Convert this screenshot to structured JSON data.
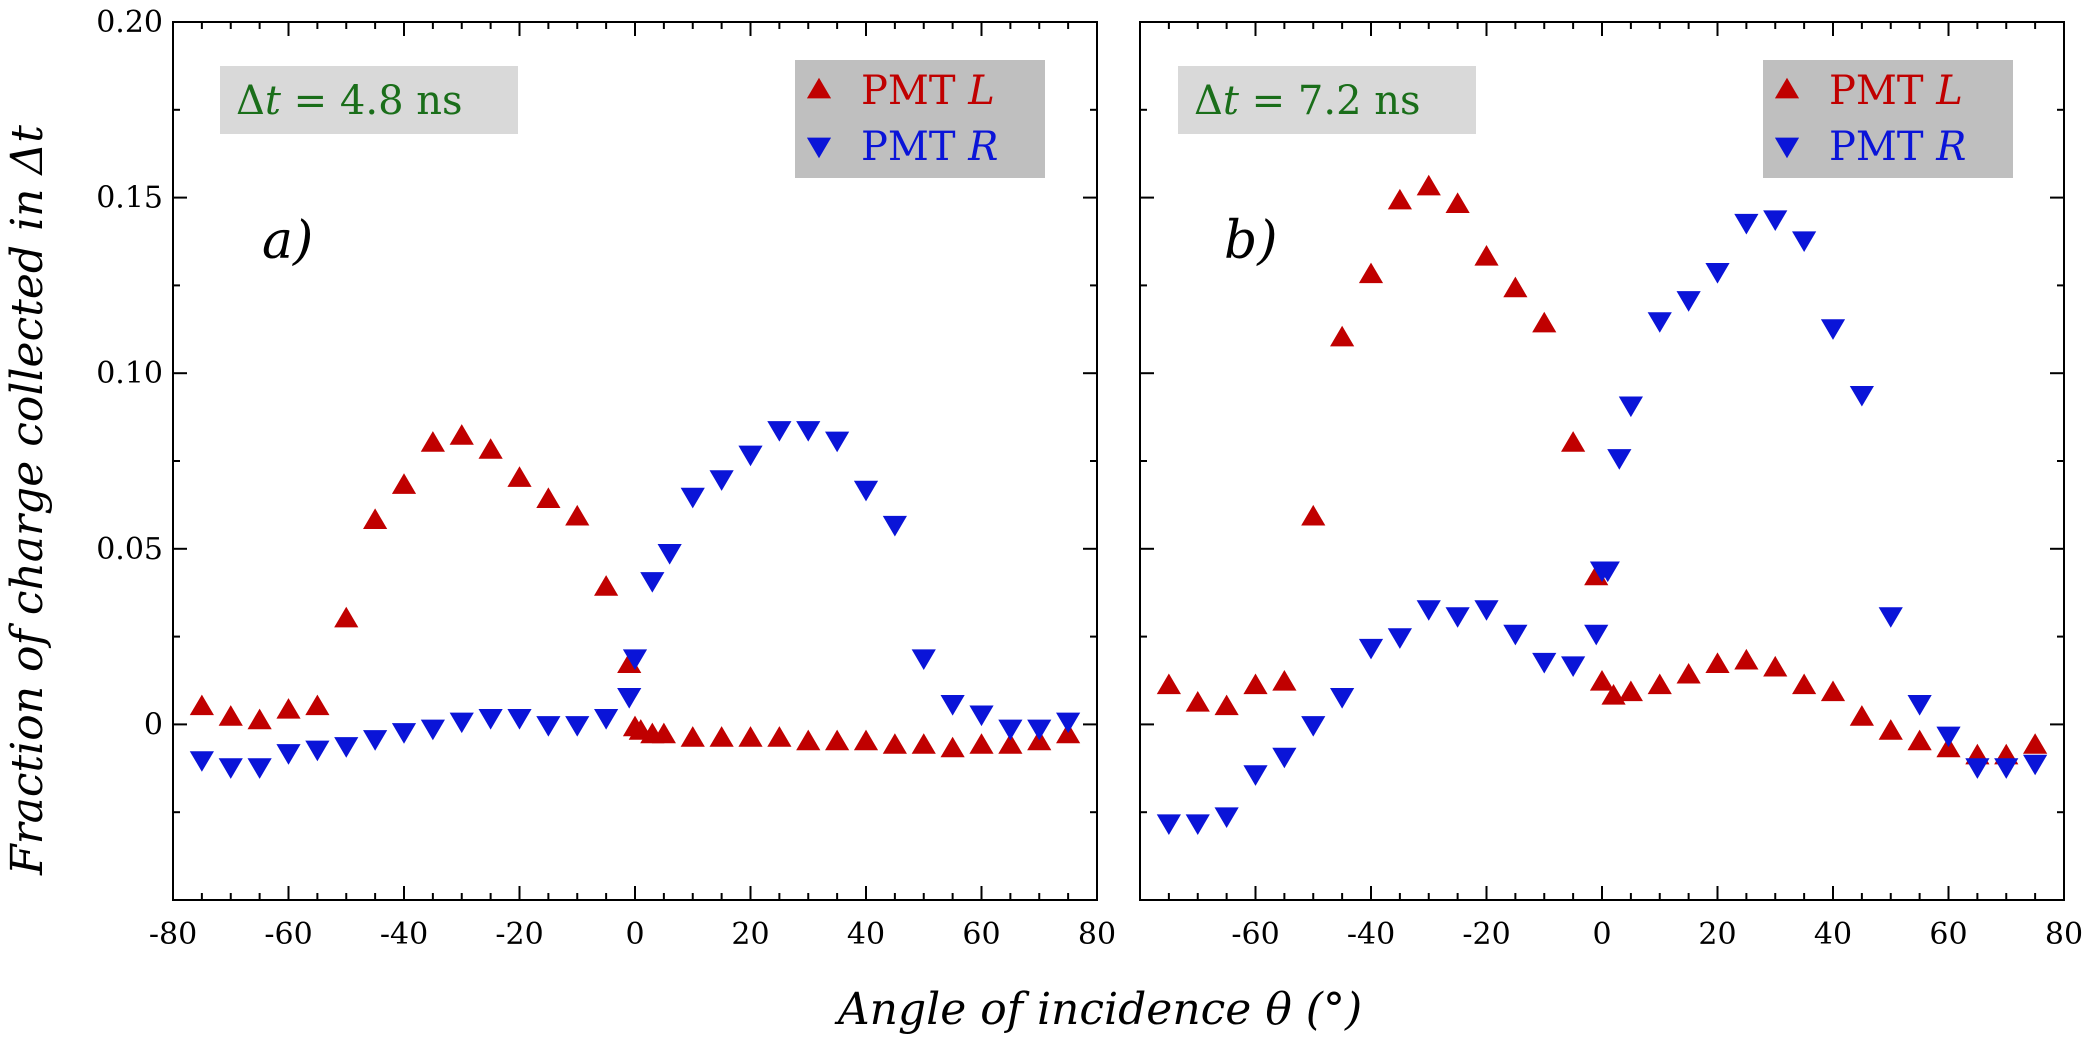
{
  "chart_data": {
    "type": "scatter",
    "ylabel_parts": [
      "Fraction of charge collected in Δ",
      "t"
    ],
    "xlabel": "Angle of incidence θ (°)",
    "colors": {
      "pmt_l": "#c00000",
      "pmt_r": "#0a14d8",
      "annotation": "#1a6e1a"
    },
    "panels": [
      {
        "label": "a)",
        "annotation": {
          "delta": "Δ",
          "t": "t",
          "rest": " = 4.8 ns"
        },
        "xlim": [
          -80,
          80
        ],
        "ylim": [
          -0.05,
          0.2
        ],
        "xticks": [
          "-80",
          "-60",
          "-40",
          "-20",
          "0",
          "20",
          "40",
          "60",
          "80"
        ],
        "xtick_values": [
          -80,
          -60,
          -40,
          -20,
          0,
          20,
          40,
          60,
          80
        ],
        "yticks": [
          "0",
          "0.05",
          "0.10",
          "0.15",
          "0.20"
        ],
        "ytick_values": [
          0,
          0.05,
          0.1,
          0.15,
          0.2
        ],
        "legend": [
          {
            "name": "PMT ",
            "italic": "L",
            "marker": "up"
          },
          {
            "name": "PMT ",
            "italic": "R",
            "marker": "down"
          }
        ],
        "series": [
          {
            "name": "PMT L",
            "marker": "up",
            "x": [
              -75,
              -70,
              -65,
              -60,
              -55,
              -50,
              -45,
              -40,
              -35,
              -30,
              -25,
              -20,
              -15,
              -10,
              -5,
              -1,
              0,
              1,
              3,
              5,
              10,
              15,
              20,
              25,
              30,
              35,
              40,
              45,
              50,
              55,
              60,
              65,
              70,
              75
            ],
            "y": [
              0.005,
              0.002,
              0.001,
              0.004,
              0.005,
              0.03,
              0.058,
              0.068,
              0.08,
              0.082,
              0.078,
              0.07,
              0.064,
              0.059,
              0.039,
              0.017,
              -0.001,
              -0.002,
              -0.003,
              -0.003,
              -0.004,
              -0.004,
              -0.004,
              -0.004,
              -0.005,
              -0.005,
              -0.005,
              -0.006,
              -0.006,
              -0.007,
              -0.006,
              -0.006,
              -0.005,
              -0.003
            ]
          },
          {
            "name": "PMT R",
            "marker": "down",
            "x": [
              -75,
              -70,
              -65,
              -60,
              -55,
              -50,
              -45,
              -40,
              -35,
              -30,
              -25,
              -20,
              -15,
              -10,
              -5,
              -1,
              0,
              3,
              6,
              10,
              15,
              20,
              25,
              30,
              35,
              40,
              45,
              50,
              55,
              60,
              65,
              70,
              75
            ],
            "y": [
              -0.01,
              -0.012,
              -0.012,
              -0.008,
              -0.007,
              -0.006,
              -0.004,
              -0.002,
              -0.001,
              0.001,
              0.002,
              0.002,
              0.0,
              0.0,
              0.002,
              0.008,
              0.019,
              0.041,
              0.049,
              0.065,
              0.07,
              0.077,
              0.084,
              0.084,
              0.081,
              0.067,
              0.057,
              0.019,
              0.006,
              0.003,
              -0.001,
              -0.001,
              0.001
            ]
          }
        ]
      },
      {
        "label": "b)",
        "annotation": {
          "delta": "Δ",
          "t": "t",
          "rest": " = 7.2 ns"
        },
        "xlim": [
          -80,
          80
        ],
        "ylim": [
          -0.05,
          0.2
        ],
        "xticks": [
          "-60",
          "-40",
          "-20",
          "0",
          "20",
          "40",
          "60",
          "80"
        ],
        "xtick_values": [
          -60,
          -40,
          -20,
          0,
          20,
          40,
          60,
          80
        ],
        "yticks": [],
        "ytick_values": [
          0,
          0.05,
          0.1,
          0.15,
          0.2
        ],
        "legend": [
          {
            "name": "PMT ",
            "italic": "L",
            "marker": "up"
          },
          {
            "name": "PMT ",
            "italic": "R",
            "marker": "down"
          }
        ],
        "series": [
          {
            "name": "PMT L",
            "marker": "up",
            "x": [
              -75,
              -70,
              -65,
              -60,
              -55,
              -50,
              -45,
              -40,
              -35,
              -30,
              -25,
              -20,
              -15,
              -10,
              -5,
              -1,
              0,
              2,
              5,
              10,
              15,
              20,
              25,
              30,
              35,
              40,
              45,
              50,
              55,
              60,
              65,
              70,
              75
            ],
            "y": [
              0.011,
              0.006,
              0.005,
              0.011,
              0.012,
              0.059,
              0.11,
              0.128,
              0.149,
              0.153,
              0.148,
              0.133,
              0.124,
              0.114,
              0.08,
              0.042,
              0.012,
              0.008,
              0.009,
              0.011,
              0.014,
              0.017,
              0.018,
              0.016,
              0.011,
              0.009,
              0.002,
              -0.002,
              -0.005,
              -0.007,
              -0.009,
              -0.009,
              -0.006
            ]
          },
          {
            "name": "PMT R",
            "marker": "down",
            "x": [
              -75,
              -70,
              -65,
              -60,
              -55,
              -50,
              -45,
              -40,
              -35,
              -30,
              -25,
              -20,
              -15,
              -10,
              -5,
              -1,
              0,
              1,
              3,
              5,
              10,
              15,
              20,
              25,
              30,
              35,
              40,
              45,
              50,
              55,
              60,
              65,
              70,
              75
            ],
            "y": [
              -0.028,
              -0.028,
              -0.026,
              -0.014,
              -0.009,
              0.0,
              0.008,
              0.022,
              0.025,
              0.033,
              0.031,
              0.033,
              0.026,
              0.018,
              0.017,
              0.026,
              0.044,
              0.044,
              0.076,
              0.091,
              0.115,
              0.121,
              0.129,
              0.143,
              0.144,
              0.138,
              0.113,
              0.094,
              0.031,
              0.006,
              -0.003,
              -0.012,
              -0.012,
              -0.011
            ]
          }
        ]
      }
    ]
  }
}
